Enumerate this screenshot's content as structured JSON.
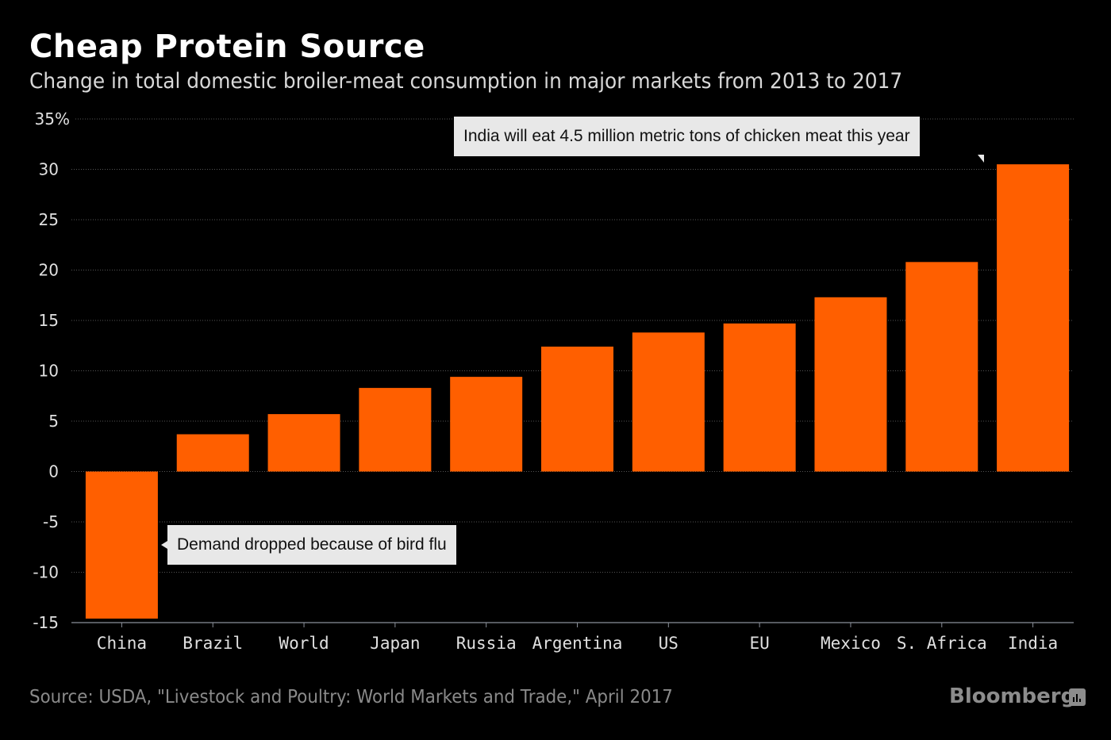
{
  "header": {
    "title": "Cheap Protein Source",
    "subtitle": "Change in total domestic broiler-meat consumption in major markets from 2013 to 2017"
  },
  "chart_data": {
    "type": "bar",
    "title": "Cheap Protein Source",
    "subtitle": "Change in total domestic broiler-meat consumption in major markets from 2013 to 2017",
    "xlabel": "",
    "ylabel": "",
    "unit": "%",
    "categories": [
      "China",
      "Brazil",
      "World",
      "Japan",
      "Russia",
      "Argentina",
      "US",
      "EU",
      "Mexico",
      "S. Africa",
      "India"
    ],
    "values": [
      -14.6,
      3.7,
      5.7,
      8.3,
      9.4,
      12.4,
      13.8,
      14.7,
      17.3,
      20.8,
      30.5
    ],
    "ylim": [
      -15,
      35
    ],
    "yticks": [
      35,
      30,
      25,
      20,
      15,
      10,
      5,
      0,
      -5,
      -10,
      -15
    ],
    "ytick_labels": [
      "35%",
      "30",
      "25",
      "20",
      "15",
      "10",
      "5",
      "0",
      "-5",
      "-10",
      "-15"
    ],
    "grid": true,
    "bar_color": "#ff5f00",
    "annotations": [
      {
        "category": "India",
        "text": "India will eat 4.5 million metric tons of chicken meat this year"
      },
      {
        "category": "China",
        "text": "Demand dropped because of bird flu"
      }
    ]
  },
  "footer": {
    "source": "Source: USDA, \"Livestock and Poultry: World Markets and Trade,\" April 2017",
    "brand": "Bloomberg"
  }
}
